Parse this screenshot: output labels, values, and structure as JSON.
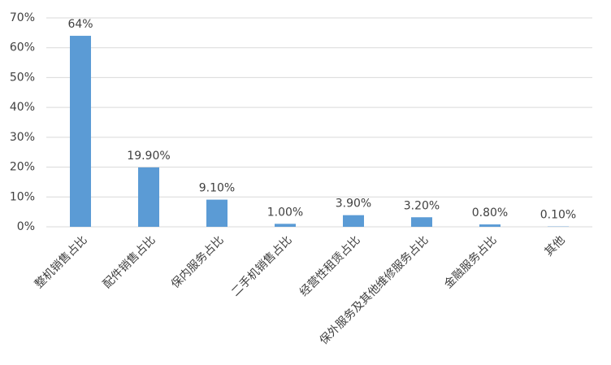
{
  "chart_data": {
    "type": "bar",
    "categories": [
      "整机销售占比",
      "配件销售占比",
      "保内服务占比",
      "二手机销售占比",
      "经营性租赁占比",
      "保外服务及其他维修服务占比",
      "金融服务占比",
      "其他"
    ],
    "values": [
      64,
      19.9,
      9.1,
      1.0,
      3.9,
      3.2,
      0.8,
      0.1
    ],
    "value_labels": [
      "64%",
      "19.90%",
      "9.10%",
      "1.00%",
      "3.90%",
      "3.20%",
      "0.80%",
      "0.10%"
    ],
    "color": "#5b9bd5",
    "ylim": [
      0,
      70
    ],
    "yticks": [
      {
        "value": 0,
        "label": "0%"
      },
      {
        "value": 10,
        "label": "10%"
      },
      {
        "value": 20,
        "label": "20%"
      },
      {
        "value": 30,
        "label": "30%"
      },
      {
        "value": 40,
        "label": "40%"
      },
      {
        "value": 50,
        "label": "50%"
      },
      {
        "value": 60,
        "label": "60%"
      },
      {
        "value": 70,
        "label": "70%"
      }
    ],
    "grid": true
  }
}
